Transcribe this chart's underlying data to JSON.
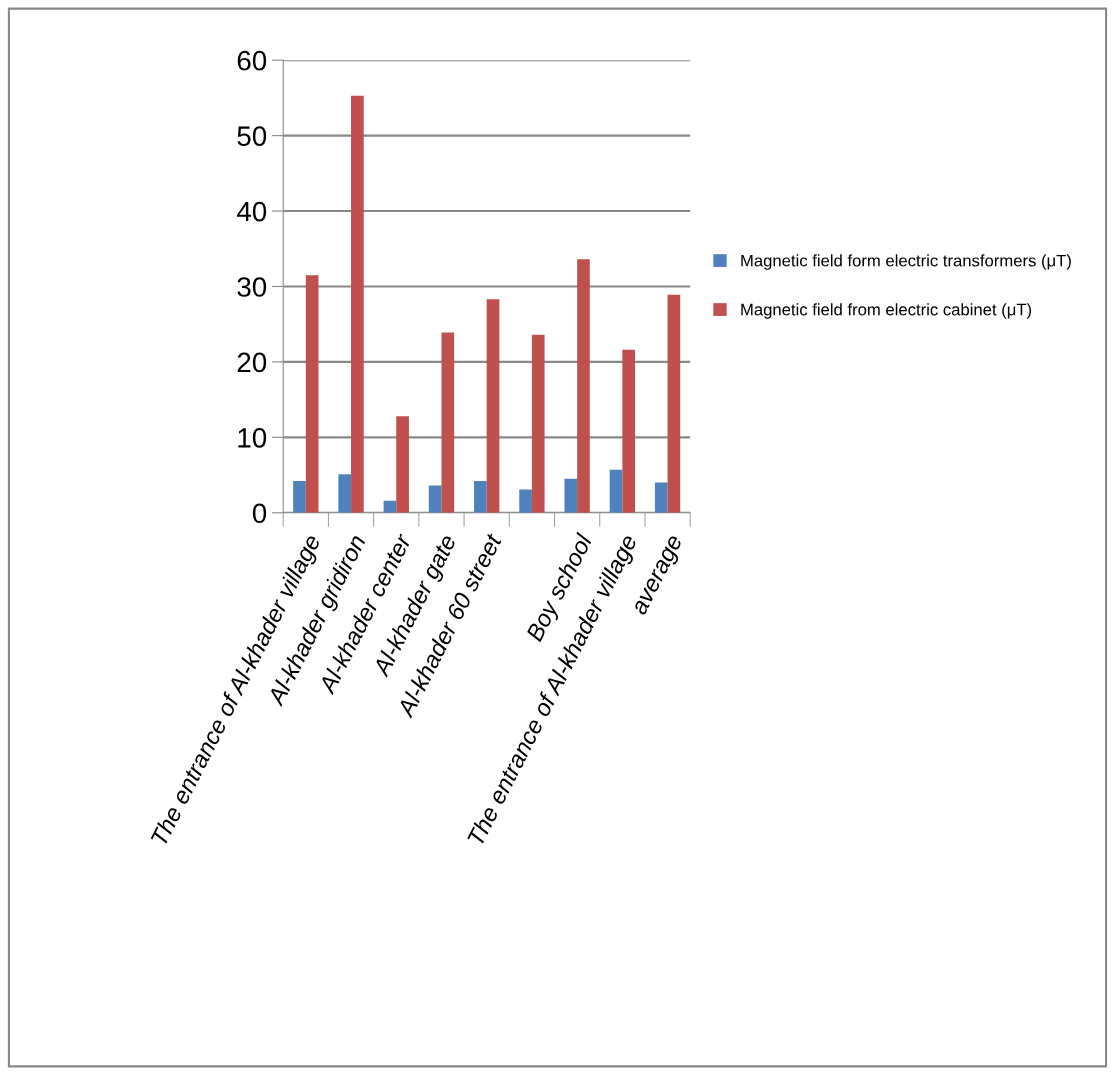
{
  "chart_data": {
    "type": "bar",
    "categories": [
      "The entrance of Al-khader village",
      "Al-khader gridiron",
      "Al-khader center",
      "Al-khader gate",
      "Al-khader 60 street",
      null,
      "Boy school",
      "The entrance of Al-khader village",
      "average"
    ],
    "series": [
      {
        "name": "Magnetic field form electric transformers (μT)",
        "color": "#4f81bd",
        "values": [
          4.2,
          5.1,
          1.6,
          3.6,
          4.2,
          3.1,
          4.5,
          5.7,
          4.0
        ]
      },
      {
        "name": "Magnetic field from electric cabinet (μT)",
        "color": "#c0504d",
        "values": [
          31.5,
          55.3,
          12.8,
          23.9,
          28.3,
          23.6,
          33.6,
          21.6,
          28.9
        ]
      }
    ],
    "ylim": [
      0,
      60
    ],
    "yticks": [
      0,
      10,
      20,
      30,
      40,
      50,
      60
    ],
    "grid": "y",
    "legend": "right"
  }
}
